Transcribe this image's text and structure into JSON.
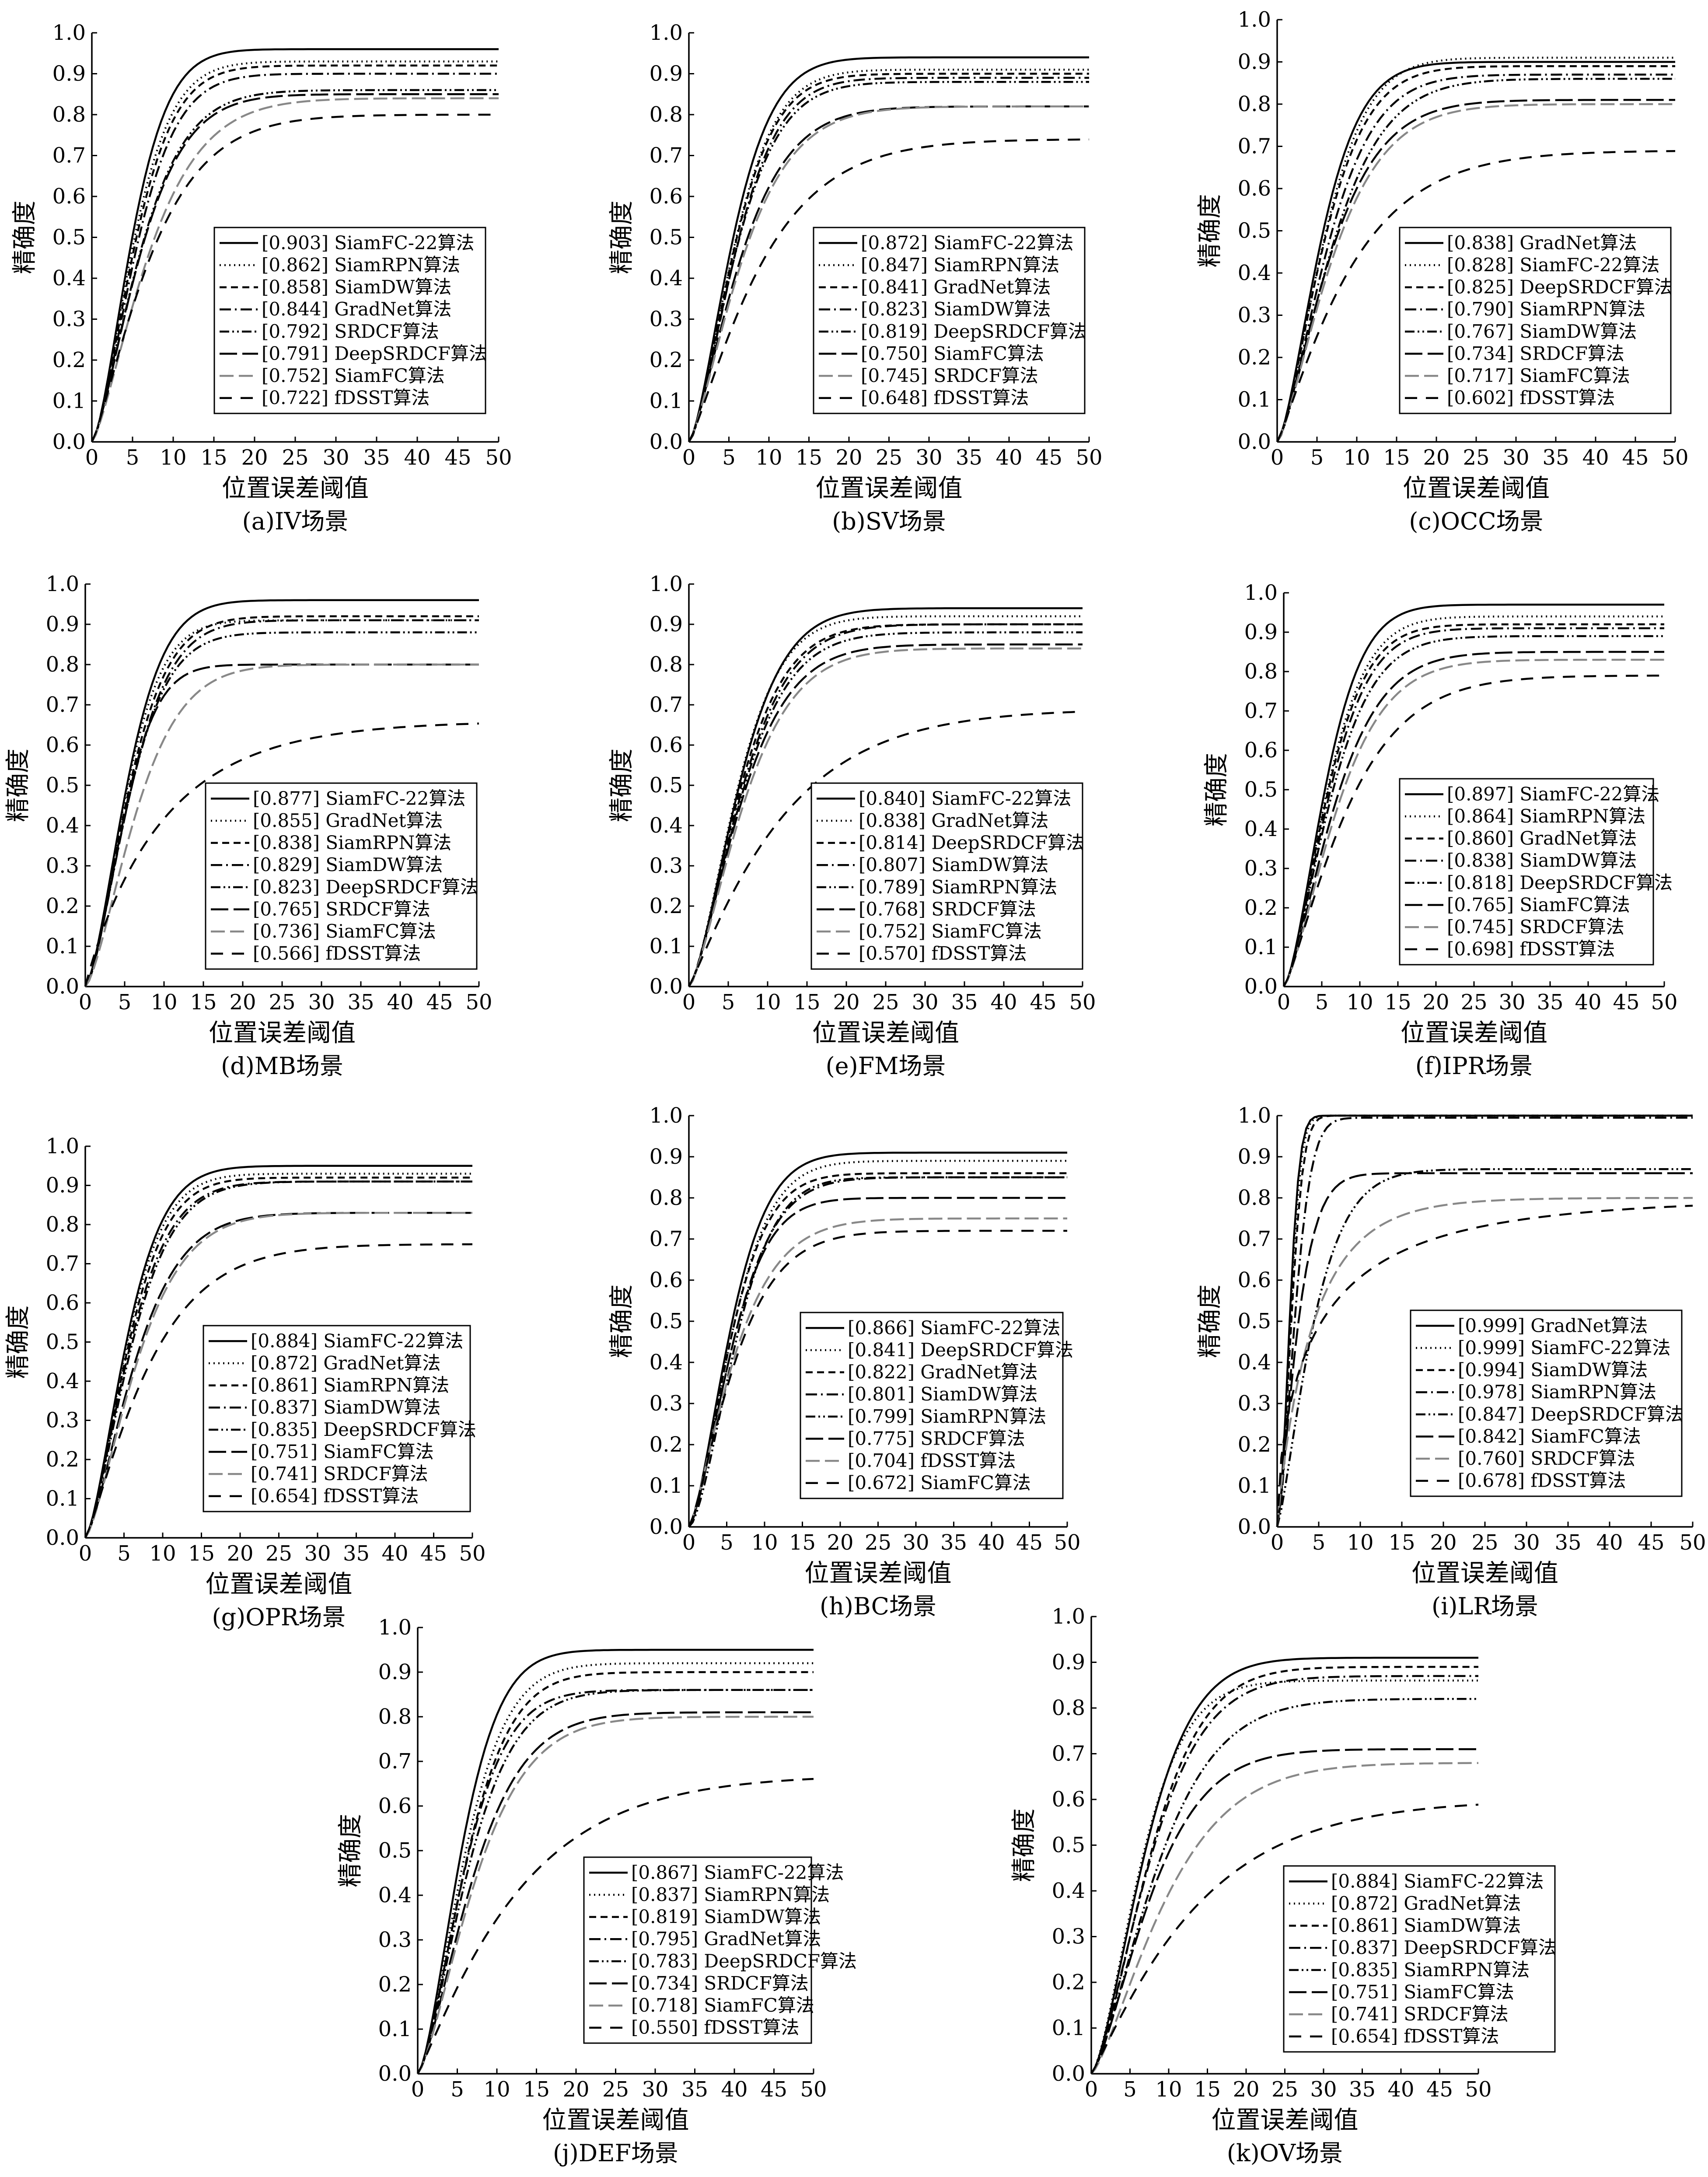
{
  "chart_data": [
    {
      "type": "line",
      "caption": "(a)IV场景",
      "xlabel": "位置误差阈值",
      "ylabel": "精确度",
      "xlim": [
        0,
        50
      ],
      "ylim": [
        0,
        1
      ],
      "series": [
        {
          "name": "[0.903] SiamFC-22算法",
          "final": 0.96,
          "k": 0.165,
          "p": 1.55
        },
        {
          "name": "[0.862] SiamRPN算法",
          "final": 0.93,
          "k": 0.16,
          "p": 1.5
        },
        {
          "name": "[0.858] SiamDW算法",
          "final": 0.92,
          "k": 0.155,
          "p": 1.5
        },
        {
          "name": "[0.844] GradNet算法",
          "final": 0.9,
          "k": 0.15,
          "p": 1.5
        },
        {
          "name": "[0.792] SRDCF算法",
          "final": 0.86,
          "k": 0.14,
          "p": 1.4
        },
        {
          "name": "[0.791] DeepSRDCF算法",
          "final": 0.85,
          "k": 0.14,
          "p": 1.4
        },
        {
          "name": "[0.752] SiamFC算法",
          "final": 0.84,
          "k": 0.12,
          "p": 1.35
        },
        {
          "name": "[0.722] fDSST算法",
          "final": 0.8,
          "k": 0.12,
          "p": 1.25
        }
      ]
    },
    {
      "type": "line",
      "caption": "(b)SV场景",
      "xlabel": "位置误差阈值",
      "ylabel": "精确度",
      "xlim": [
        0,
        50
      ],
      "ylim": [
        0,
        1
      ],
      "series": [
        {
          "name": "[0.872] SiamFC-22算法",
          "final": 0.94,
          "k": 0.15,
          "p": 1.5
        },
        {
          "name": "[0.847] SiamRPN算法",
          "final": 0.91,
          "k": 0.145,
          "p": 1.5
        },
        {
          "name": "[0.841] GradNet算法",
          "final": 0.9,
          "k": 0.145,
          "p": 1.5
        },
        {
          "name": "[0.823] SiamDW算法",
          "final": 0.89,
          "k": 0.14,
          "p": 1.5
        },
        {
          "name": "[0.819] DeepSRDCF算法",
          "final": 0.88,
          "k": 0.14,
          "p": 1.45
        },
        {
          "name": "[0.750] SiamFC算法",
          "final": 0.82,
          "k": 0.13,
          "p": 1.35
        },
        {
          "name": "[0.745] SRDCF算法",
          "final": 0.82,
          "k": 0.125,
          "p": 1.35
        },
        {
          "name": "[0.648] fDSST算法",
          "final": 0.74,
          "k": 0.1,
          "p": 1.2
        }
      ]
    },
    {
      "type": "line",
      "caption": "(c)OCC场景",
      "xlabel": "位置误差阈值",
      "ylabel": "精确度",
      "xlim": [
        0,
        50
      ],
      "ylim": [
        0,
        1
      ],
      "series": [
        {
          "name": "[0.838] GradNet算法",
          "final": 0.9,
          "k": 0.15,
          "p": 1.5
        },
        {
          "name": "[0.828] SiamFC-22算法",
          "final": 0.91,
          "k": 0.14,
          "p": 1.5
        },
        {
          "name": "[0.825] DeepSRDCF算法",
          "final": 0.89,
          "k": 0.14,
          "p": 1.45
        },
        {
          "name": "[0.790] SiamRPN算法",
          "final": 0.87,
          "k": 0.13,
          "p": 1.45
        },
        {
          "name": "[0.767] SiamDW算法",
          "final": 0.86,
          "k": 0.12,
          "p": 1.4
        },
        {
          "name": "[0.734] SRDCF算法",
          "final": 0.81,
          "k": 0.125,
          "p": 1.35
        },
        {
          "name": "[0.717] SiamFC算法",
          "final": 0.8,
          "k": 0.12,
          "p": 1.35
        },
        {
          "name": "[0.602] fDSST算法",
          "final": 0.69,
          "k": 0.1,
          "p": 1.15
        }
      ]
    },
    {
      "type": "line",
      "caption": "(d)MB场景",
      "xlabel": "位置误差阈值",
      "ylabel": "精确度",
      "xlim": [
        0,
        50
      ],
      "ylim": [
        0,
        1
      ],
      "series": [
        {
          "name": "[0.877] SiamFC-22算法",
          "final": 0.96,
          "k": 0.155,
          "p": 1.55
        },
        {
          "name": "[0.855] GradNet算法",
          "final": 0.91,
          "k": 0.16,
          "p": 1.55
        },
        {
          "name": "[0.838] SiamRPN算法",
          "final": 0.92,
          "k": 0.15,
          "p": 1.5
        },
        {
          "name": "[0.829] SiamDW算法",
          "final": 0.91,
          "k": 0.145,
          "p": 1.5
        },
        {
          "name": "[0.823] DeepSRDCF算法",
          "final": 0.88,
          "k": 0.15,
          "p": 1.5
        },
        {
          "name": "[0.765] SRDCF算法",
          "final": 0.8,
          "k": 0.17,
          "p": 1.6
        },
        {
          "name": "[0.736] SiamFC算法",
          "final": 0.8,
          "k": 0.13,
          "p": 1.45
        },
        {
          "name": "[0.566] fDSST算法",
          "final": 0.66,
          "k": 0.1,
          "p": 0.95
        }
      ]
    },
    {
      "type": "line",
      "caption": "(e)FM场景",
      "xlabel": "位置误差阈值",
      "ylabel": "精确度",
      "xlim": [
        0,
        50
      ],
      "ylim": [
        0,
        1
      ],
      "series": [
        {
          "name": "[0.840] SiamFC-22算法",
          "final": 0.94,
          "k": 0.13,
          "p": 1.5
        },
        {
          "name": "[0.838] GradNet算法",
          "final": 0.92,
          "k": 0.135,
          "p": 1.5
        },
        {
          "name": "[0.814] DeepSRDCF算法",
          "final": 0.9,
          "k": 0.13,
          "p": 1.45
        },
        {
          "name": "[0.807] SiamDW算法",
          "final": 0.9,
          "k": 0.125,
          "p": 1.45
        },
        {
          "name": "[0.789] SiamRPN算法",
          "final": 0.88,
          "k": 0.125,
          "p": 1.45
        },
        {
          "name": "[0.768] SRDCF算法",
          "final": 0.85,
          "k": 0.125,
          "p": 1.4
        },
        {
          "name": "[0.752] SiamFC算法",
          "final": 0.84,
          "k": 0.12,
          "p": 1.4
        },
        {
          "name": "[0.570] fDSST算法",
          "final": 0.69,
          "k": 0.08,
          "p": 1.1
        }
      ]
    },
    {
      "type": "line",
      "caption": "(f)IPR场景",
      "xlabel": "位置误差阈值",
      "ylabel": "精确度",
      "xlim": [
        0,
        50
      ],
      "ylim": [
        0,
        1
      ],
      "series": [
        {
          "name": "[0.897] SiamFC-22算法",
          "final": 0.97,
          "k": 0.15,
          "p": 1.55
        },
        {
          "name": "[0.864] SiamRPN算法",
          "final": 0.94,
          "k": 0.145,
          "p": 1.5
        },
        {
          "name": "[0.860] GradNet算法",
          "final": 0.92,
          "k": 0.145,
          "p": 1.5
        },
        {
          "name": "[0.838] SiamDW算法",
          "final": 0.91,
          "k": 0.14,
          "p": 1.5
        },
        {
          "name": "[0.818] DeepSRDCF算法",
          "final": 0.89,
          "k": 0.135,
          "p": 1.45
        },
        {
          "name": "[0.765] SiamFC算法",
          "final": 0.85,
          "k": 0.125,
          "p": 1.4
        },
        {
          "name": "[0.745] SRDCF算法",
          "final": 0.83,
          "k": 0.12,
          "p": 1.4
        },
        {
          "name": "[0.698] fDSST算法",
          "final": 0.79,
          "k": 0.105,
          "p": 1.25
        }
      ]
    },
    {
      "type": "line",
      "caption": "(g)OPR场景",
      "xlabel": "位置误差阈值",
      "ylabel": "精确度",
      "xlim": [
        0,
        50
      ],
      "ylim": [
        0,
        1
      ],
      "series": [
        {
          "name": "[0.884] SiamFC-22算法",
          "final": 0.95,
          "k": 0.155,
          "p": 1.5
        },
        {
          "name": "[0.872] GradNet算法",
          "final": 0.93,
          "k": 0.155,
          "p": 1.5
        },
        {
          "name": "[0.861] SiamRPN算法",
          "final": 0.92,
          "k": 0.15,
          "p": 1.5
        },
        {
          "name": "[0.837] SiamDW算法",
          "final": 0.91,
          "k": 0.145,
          "p": 1.45
        },
        {
          "name": "[0.835] DeepSRDCF算法",
          "final": 0.91,
          "k": 0.14,
          "p": 1.45
        },
        {
          "name": "[0.751] SiamFC算法",
          "final": 0.83,
          "k": 0.13,
          "p": 1.4
        },
        {
          "name": "[0.741] SRDCF算法",
          "final": 0.83,
          "k": 0.125,
          "p": 1.4
        },
        {
          "name": "[0.654] fDSST算法",
          "final": 0.75,
          "k": 0.11,
          "p": 1.2
        }
      ]
    },
    {
      "type": "line",
      "caption": "(h)BC场景",
      "xlabel": "位置误差阈值",
      "ylabel": "精确度",
      "xlim": [
        0,
        50
      ],
      "ylim": [
        0,
        1
      ],
      "series": [
        {
          "name": "[0.866] SiamFC-22算法",
          "final": 0.91,
          "k": 0.15,
          "p": 1.5
        },
        {
          "name": "[0.841] DeepSRDCF算法",
          "final": 0.89,
          "k": 0.145,
          "p": 1.5
        },
        {
          "name": "[0.822] GradNet算法",
          "final": 0.86,
          "k": 0.15,
          "p": 1.5
        },
        {
          "name": "[0.801] SiamDW算法",
          "final": 0.85,
          "k": 0.14,
          "p": 1.45
        },
        {
          "name": "[0.799] SiamRPN算法",
          "final": 0.85,
          "k": 0.135,
          "p": 1.6
        },
        {
          "name": "[0.775] SRDCF算法",
          "final": 0.8,
          "k": 0.15,
          "p": 1.5
        },
        {
          "name": "[0.704] fDSST算法",
          "final": 0.75,
          "k": 0.14,
          "p": 1.3
        },
        {
          "name": "[0.672] SiamFC算法",
          "final": 0.72,
          "k": 0.14,
          "p": 1.3
        }
      ]
    },
    {
      "type": "line",
      "caption": "(i)LR场景",
      "xlabel": "位置误差阈值",
      "ylabel": "精确度",
      "xlim": [
        0,
        50
      ],
      "ylim": [
        0,
        1
      ],
      "series": [
        {
          "name": "[0.999] GradNet算法",
          "final": 1.0,
          "k": 0.55,
          "p": 1.9
        },
        {
          "name": "[0.999] SiamFC-22算法",
          "final": 1.0,
          "k": 0.52,
          "p": 1.9
        },
        {
          "name": "[0.994] SiamDW算法",
          "final": 1.0,
          "k": 0.48,
          "p": 1.8
        },
        {
          "name": "[0.978] SiamRPN算法",
          "final": 0.995,
          "k": 0.38,
          "p": 1.6
        },
        {
          "name": "[0.847] DeepSRDCF算法",
          "final": 0.87,
          "k": 0.2,
          "p": 1.3
        },
        {
          "name": "[0.842] SiamFC算法",
          "final": 0.86,
          "k": 0.35,
          "p": 1.3
        },
        {
          "name": "[0.760] SRDCF算法",
          "final": 0.8,
          "k": 0.22,
          "p": 0.9
        },
        {
          "name": "[0.678] fDSST算法",
          "final": 0.8,
          "k": 0.18,
          "p": 0.6
        }
      ]
    },
    {
      "type": "line",
      "caption": "(j)DEF场景",
      "xlabel": "位置误差阈值",
      "ylabel": "精确度",
      "xlim": [
        0,
        50
      ],
      "ylim": [
        0,
        1
      ],
      "series": [
        {
          "name": "[0.867] SiamFC-22算法",
          "final": 0.95,
          "k": 0.15,
          "p": 1.55
        },
        {
          "name": "[0.837] SiamRPN算法",
          "final": 0.92,
          "k": 0.14,
          "p": 1.5
        },
        {
          "name": "[0.819] SiamDW算法",
          "final": 0.9,
          "k": 0.135,
          "p": 1.5
        },
        {
          "name": "[0.795] GradNet算法",
          "final": 0.86,
          "k": 0.14,
          "p": 1.5
        },
        {
          "name": "[0.783] DeepSRDCF算法",
          "final": 0.86,
          "k": 0.13,
          "p": 1.45
        },
        {
          "name": "[0.734] SRDCF算法",
          "final": 0.81,
          "k": 0.12,
          "p": 1.4
        },
        {
          "name": "[0.718] SiamFC算法",
          "final": 0.8,
          "k": 0.115,
          "p": 1.4
        },
        {
          "name": "[0.550] fDSST算法",
          "final": 0.67,
          "k": 0.075,
          "p": 1.1
        }
      ]
    },
    {
      "type": "line",
      "caption": "(k)OV场景",
      "xlabel": "位置误差阈值",
      "ylabel": "精确度",
      "xlim": [
        0,
        50
      ],
      "ylim": [
        0,
        1
      ],
      "series": [
        {
          "name": "[0.884] SiamFC-22算法",
          "final": 0.91,
          "k": 0.12,
          "p": 1.5
        },
        {
          "name": "[0.872] GradNet算法",
          "final": 0.86,
          "k": 0.13,
          "p": 1.5
        },
        {
          "name": "[0.861] SiamDW算法",
          "final": 0.89,
          "k": 0.11,
          "p": 1.5
        },
        {
          "name": "[0.837] DeepSRDCF算法",
          "final": 0.87,
          "k": 0.11,
          "p": 1.45
        },
        {
          "name": "[0.835] SiamRPN算法",
          "final": 0.82,
          "k": 0.1,
          "p": 1.4
        },
        {
          "name": "[0.751] SiamFC算法",
          "final": 0.71,
          "k": 0.11,
          "p": 1.4
        },
        {
          "name": "[0.741] SRDCF算法",
          "final": 0.68,
          "k": 0.09,
          "p": 1.35
        },
        {
          "name": "[0.654] fDSST算法",
          "final": 0.6,
          "k": 0.07,
          "p": 1.1
        }
      ]
    }
  ]
}
